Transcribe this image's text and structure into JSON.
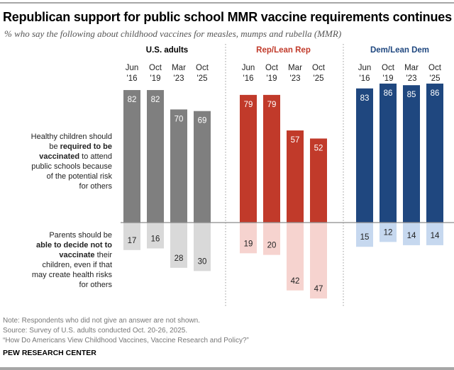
{
  "chart_data": {
    "type": "bar",
    "title": "Republican support for public school MMR vaccine requirements continues to slide",
    "subtitle": "% who say the following about childhood vaccines for measles, mumps and rubella (MMR)",
    "categories": [
      "Jun '16",
      "Oct '19",
      "Mar '23",
      "Oct '25"
    ],
    "category_lines": [
      [
        "Jun",
        "'16"
      ],
      [
        "Oct",
        "'19"
      ],
      [
        "Mar",
        "'23"
      ],
      [
        "Oct",
        "'25"
      ]
    ],
    "row_labels": {
      "required": [
        "Healthy children should",
        "be |required to be|",
        "|vaccinated| to attend",
        "public schools because",
        "of the potential risk",
        "for others"
      ],
      "not_required": [
        "Parents should be",
        "|able to decide not to|",
        "|vaccinate| their",
        "children, even if that",
        "may create health risks",
        "for others"
      ]
    },
    "groups": [
      {
        "name": "U.S. adults",
        "color": "#7f7f7f",
        "light_color": "#d9d9d9",
        "label_color": "#000000",
        "required": [
          82,
          82,
          70,
          69
        ],
        "not_required": [
          17,
          16,
          28,
          30
        ]
      },
      {
        "name": "Rep/Lean Rep",
        "color": "#c13a2a",
        "light_color": "#f6d3cf",
        "label_color": "#c13a2a",
        "required": [
          79,
          79,
          57,
          52
        ],
        "not_required": [
          19,
          20,
          42,
          47
        ]
      },
      {
        "name": "Dem/Lean Dem",
        "color": "#1f477f",
        "light_color": "#c6d8ef",
        "label_color": "#1f477f",
        "required": [
          83,
          86,
          85,
          86
        ],
        "not_required": [
          15,
          12,
          14,
          14
        ]
      }
    ],
    "ylim": [
      -50,
      90
    ],
    "grid": false
  },
  "notes": {
    "note": "Note: Respondents who did not give an answer are not shown.",
    "source": "Source: Survey of U.S. adults conducted Oct. 20-26, 2025.",
    "report": "“How Do Americans View Childhood Vaccines, Vaccine Research and Policy?”",
    "brand": "PEW RESEARCH CENTER"
  }
}
